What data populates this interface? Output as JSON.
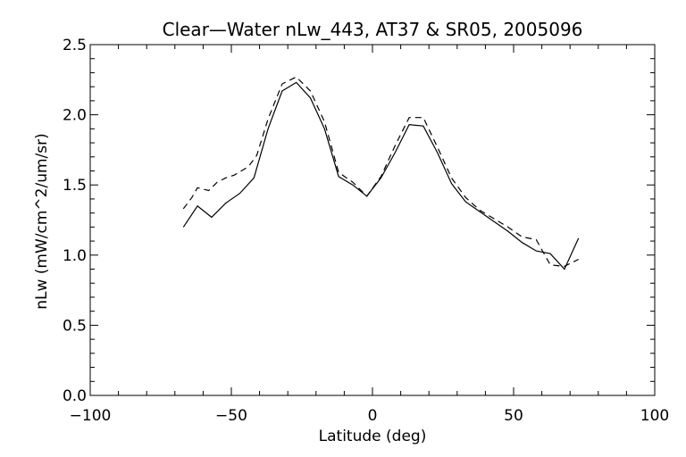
{
  "chart_data": {
    "type": "line",
    "title": "Clear—Water nLw_443, AT37 & SR05, 2005096",
    "xlabel": "Latitude (deg)",
    "ylabel": "nLw (mW/cm^2/um/sr)",
    "xlim": [
      -100,
      100
    ],
    "ylim": [
      0.0,
      2.5
    ],
    "x_ticks": [
      -100,
      -50,
      0,
      50,
      100
    ],
    "x_tick_labels": [
      "−100",
      "−50",
      "0",
      "50",
      "100"
    ],
    "y_ticks": [
      0.0,
      0.5,
      1.0,
      1.5,
      2.0,
      2.5
    ],
    "y_tick_labels": [
      "0.0",
      "0.5",
      "1.0",
      "1.5",
      "2.0",
      "2.5"
    ],
    "x_minor_step": 10,
    "y_minor_step": 0.1,
    "grid": false,
    "legend": "none",
    "series": [
      {
        "style": "solid",
        "color": "#000000",
        "x": [
          -67,
          -62,
          -57,
          -52,
          -47,
          -42,
          -37,
          -32,
          -27,
          -22,
          -17,
          -12,
          -7,
          -2,
          3,
          8,
          13,
          18,
          23,
          28,
          33,
          38,
          43,
          48,
          53,
          58,
          63,
          68,
          73
        ],
        "y": [
          1.2,
          1.35,
          1.27,
          1.37,
          1.44,
          1.55,
          1.9,
          2.17,
          2.23,
          2.12,
          1.9,
          1.56,
          1.5,
          1.42,
          1.55,
          1.73,
          1.93,
          1.92,
          1.73,
          1.51,
          1.38,
          1.31,
          1.24,
          1.17,
          1.09,
          1.03,
          1.01,
          0.9,
          1.12
        ]
      },
      {
        "style": "dashed",
        "color": "#000000",
        "x": [
          -67,
          -64,
          -62,
          -58,
          -55,
          -52,
          -49,
          -44,
          -41,
          -37,
          -32,
          -27,
          -22,
          -17,
          -12,
          -7,
          -2,
          3,
          8,
          13,
          18,
          23,
          28,
          33,
          38,
          43,
          48,
          53,
          58,
          63,
          68,
          73
        ],
        "y": [
          1.33,
          1.41,
          1.48,
          1.46,
          1.52,
          1.55,
          1.57,
          1.63,
          1.71,
          1.97,
          2.22,
          2.27,
          2.17,
          1.95,
          1.59,
          1.52,
          1.42,
          1.56,
          1.78,
          1.98,
          1.98,
          1.77,
          1.55,
          1.41,
          1.32,
          1.26,
          1.2,
          1.13,
          1.11,
          0.93,
          0.92,
          0.97
        ]
      }
    ]
  }
}
